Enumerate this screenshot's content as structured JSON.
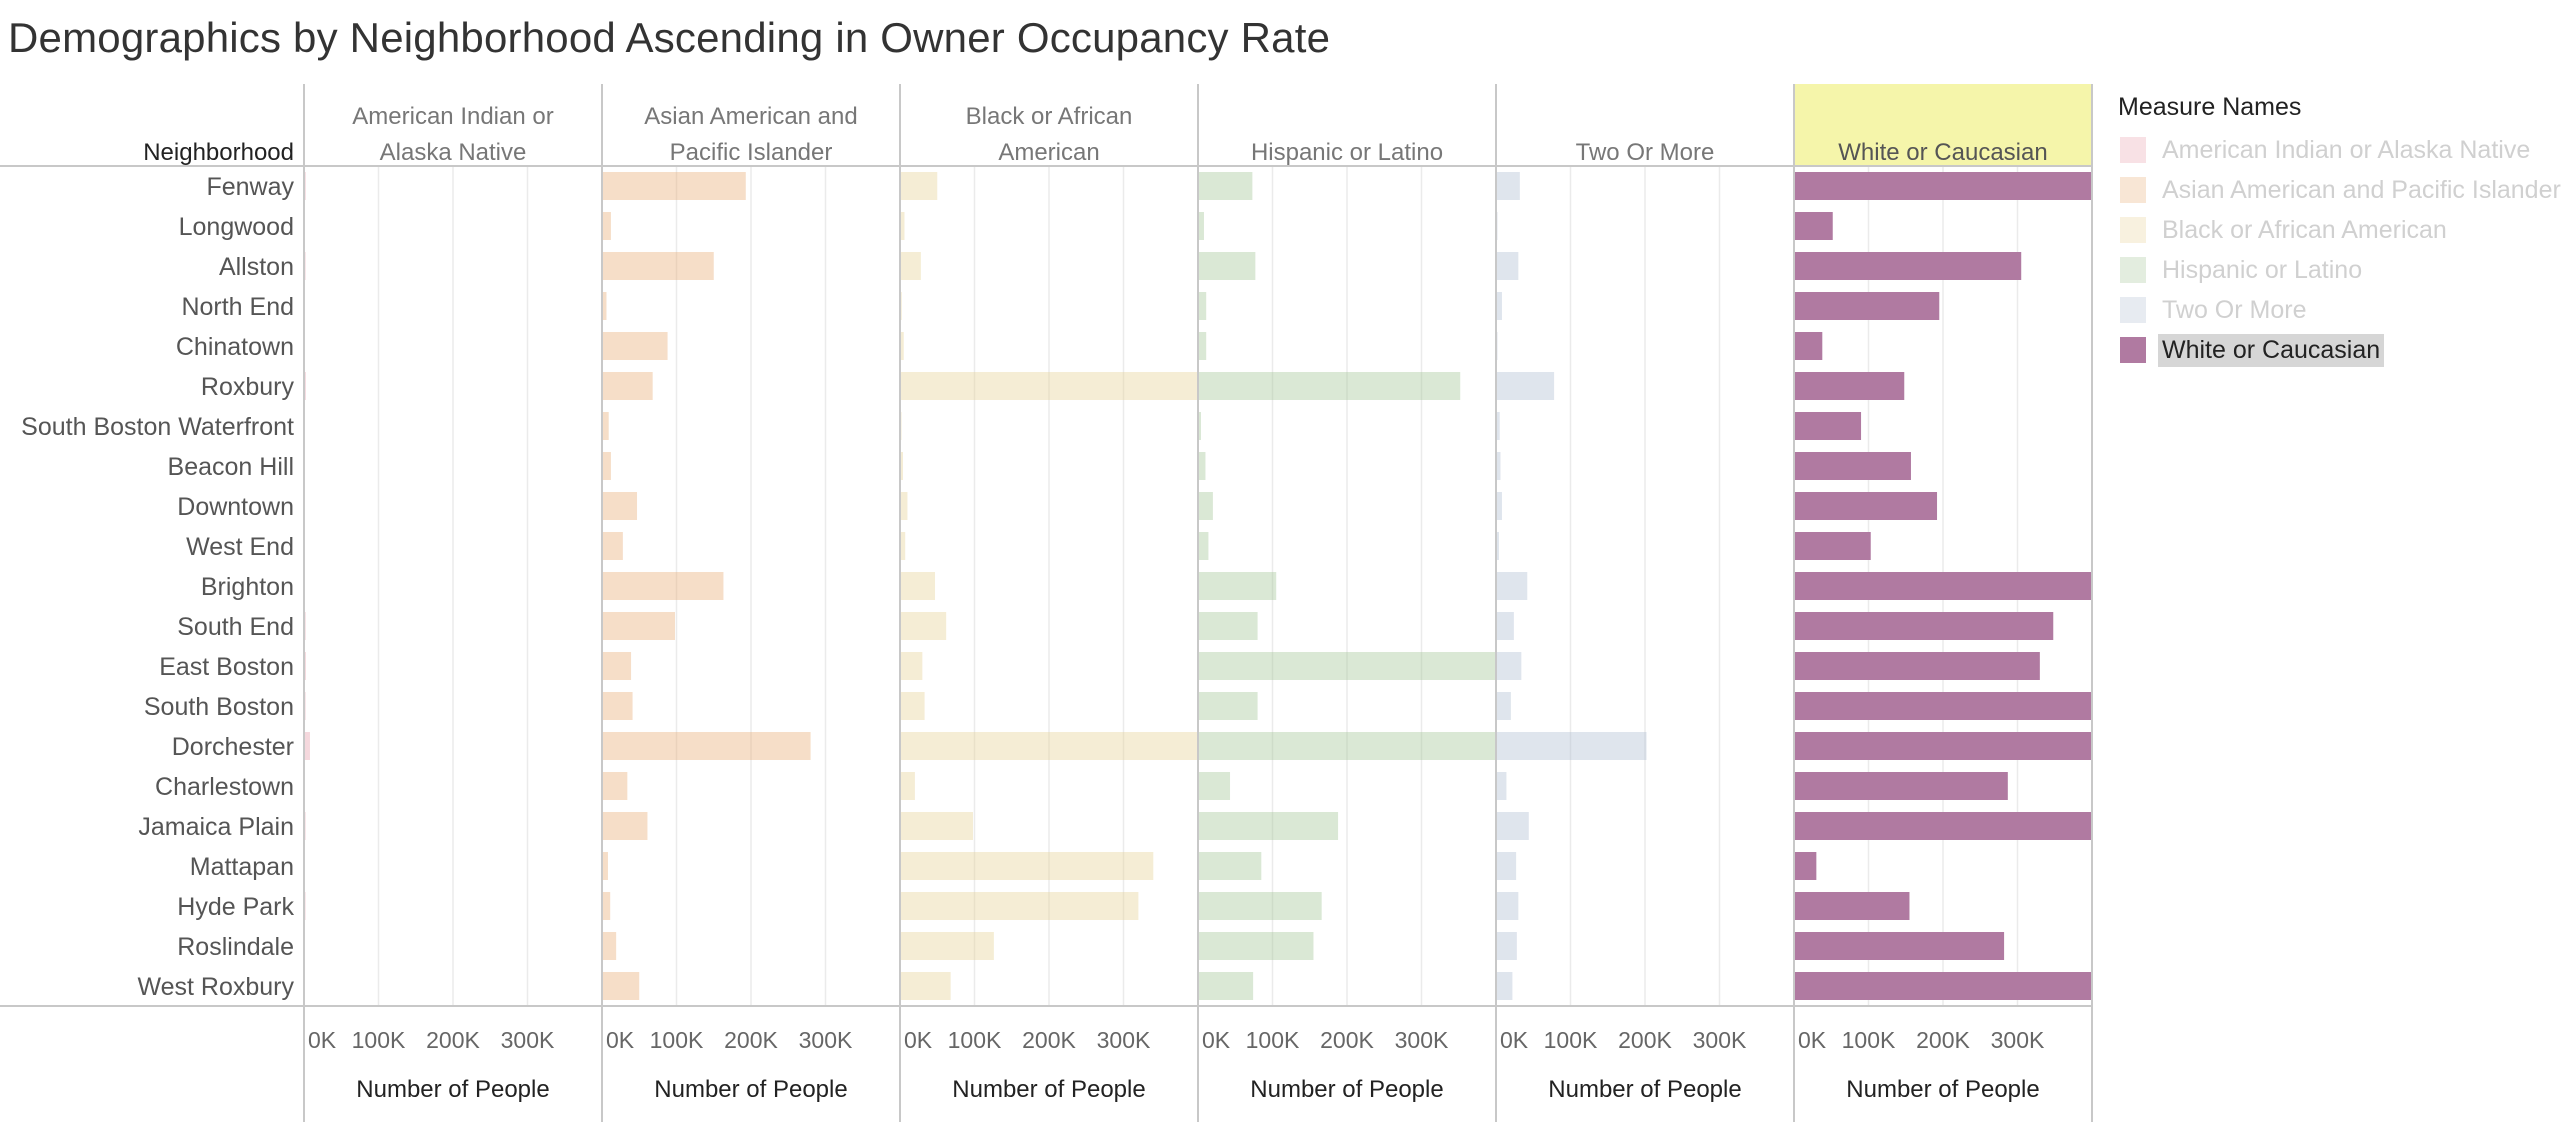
{
  "title": "Demographics by Neighborhood Ascending in Owner Occupancy Rate",
  "row_header": "Neighborhood",
  "highlighted_column": "White or Caucasian",
  "colors": {
    "American Indian or Alaska Native": "#e8a3ad",
    "Asian American and Pacific Islander": "#e9b17b",
    "Black or African American": "#e8d59a",
    "Hispanic or Latino": "#a8c79a",
    "Two Or More": "#b3c2d3",
    "White or Caucasian": "#b07aa1",
    "highlight_header": "#f5f5aa"
  },
  "legend": {
    "title": "Measure Names",
    "items": [
      "American Indian or Alaska Native",
      "Asian American and Pacific Islander",
      "Black or African American",
      "Hispanic or Latino",
      "Two Or More",
      "White or Caucasian"
    ],
    "selected": "White or Caucasian"
  },
  "chart_data": {
    "type": "bar",
    "orientation": "horizontal",
    "title": "Demographics by Neighborhood Ascending in Owner Occupancy Rate",
    "xlabel": "Number of People",
    "ylabel": "Neighborhood",
    "xlim": [
      0,
      400000
    ],
    "x_ticks": [
      "0K",
      "100K",
      "200K",
      "300K"
    ],
    "categories": [
      "Fenway",
      "Longwood",
      "Allston",
      "North End",
      "Chinatown",
      "Roxbury",
      "South Boston Waterfront",
      "Beacon Hill",
      "Downtown",
      "West End",
      "Brighton",
      "South End",
      "East Boston",
      "South Boston",
      "Dorchester",
      "Charlestown",
      "Jamaica Plain",
      "Mattapan",
      "Hyde Park",
      "Roslindale",
      "West Roxbury"
    ],
    "series": [
      {
        "name": "American Indian or Alaska Native",
        "values": [
          1000,
          200,
          800,
          100,
          200,
          2500,
          100,
          100,
          200,
          100,
          600,
          900,
          1200,
          800,
          8000,
          300,
          800,
          600,
          700,
          400,
          300
        ]
      },
      {
        "name": "Asian American and Pacific Islander",
        "values": [
          193000,
          12000,
          150000,
          6000,
          88000,
          68000,
          9000,
          12000,
          47000,
          28000,
          163000,
          98000,
          39000,
          41000,
          280000,
          34000,
          61000,
          8000,
          11000,
          19000,
          50000
        ]
      },
      {
        "name": "Black or African American",
        "values": [
          50000,
          6000,
          28000,
          1000,
          5000,
          400000,
          2000,
          4000,
          10000,
          7000,
          47000,
          62000,
          30000,
          33000,
          400000,
          20000,
          98000,
          340000,
          320000,
          126000,
          68000
        ]
      },
      {
        "name": "Hispanic or Latino",
        "values": [
          73000,
          8000,
          77000,
          11000,
          11000,
          352000,
          4000,
          10000,
          20000,
          14000,
          105000,
          80000,
          400000,
          80000,
          400000,
          43000,
          188000,
          85000,
          166000,
          155000,
          74000
        ]
      },
      {
        "name": "Two Or More",
        "values": [
          32000,
          2000,
          30000,
          8000,
          2000,
          78000,
          5000,
          6000,
          8000,
          4000,
          42000,
          24000,
          34000,
          20000,
          202000,
          14000,
          44000,
          27000,
          30000,
          28000,
          22000
        ]
      },
      {
        "name": "White or Caucasian",
        "values": [
          400000,
          52000,
          305000,
          195000,
          38000,
          148000,
          90000,
          157000,
          192000,
          103000,
          400000,
          348000,
          330000,
          400000,
          400000,
          287000,
          400000,
          30000,
          155000,
          282000,
          400000
        ]
      }
    ],
    "grid": true,
    "legend_position": "right"
  }
}
